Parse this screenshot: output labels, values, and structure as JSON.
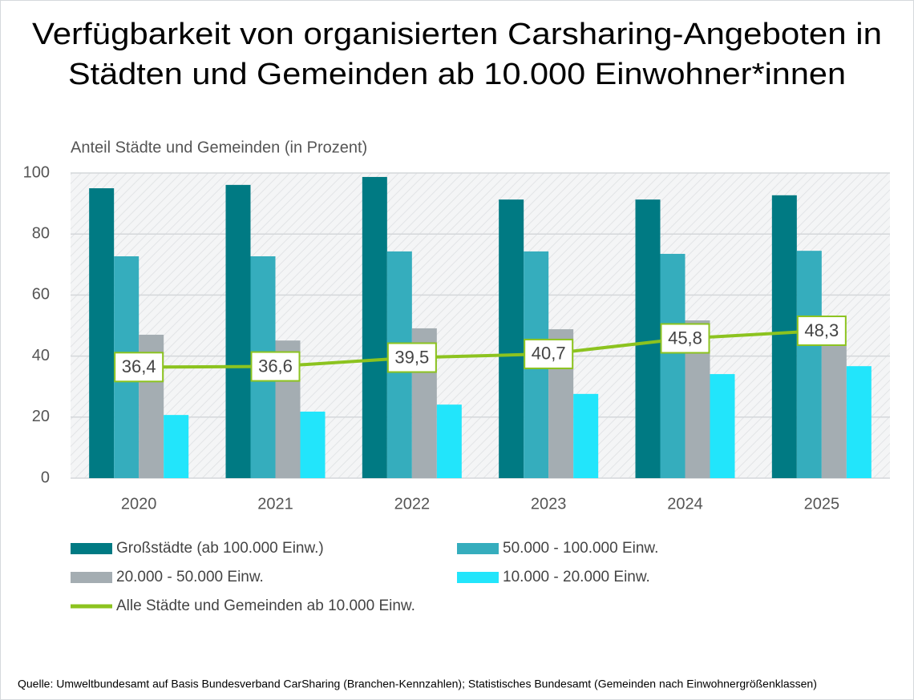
{
  "chart_data": {
    "type": "bar",
    "title": [
      "Verfügbarkeit von organisierten Carsharing-Angeboten in",
      "Städten und Gemeinden ab 10.000 Einwohner*innen"
    ],
    "y_label": "Anteil Städte und Gemeinden (in Prozent)",
    "categories": [
      "2020",
      "2021",
      "2022",
      "2023",
      "2024",
      "2025"
    ],
    "series": [
      {
        "name": "Großstädte (ab 100.000 Einw.)",
        "color": "#007a83",
        "values": [
          95.0,
          96.1,
          98.7,
          91.3,
          91.3,
          92.7
        ]
      },
      {
        "name": "50.000 - 100.000 Einw.",
        "color": "#35adbd",
        "values": [
          72.7,
          72.7,
          74.3,
          74.3,
          73.5,
          74.5
        ]
      },
      {
        "name": "20.000 - 50.000 Einw.",
        "color": "#a4adb2",
        "values": [
          47.0,
          45.1,
          49.1,
          48.8,
          51.7,
          43.3
        ]
      },
      {
        "name": "10.000 - 20.000 Einw.",
        "color": "#22e5fb",
        "values": [
          20.7,
          21.8,
          24.1,
          27.6,
          34.1,
          36.7
        ]
      }
    ],
    "line_series": {
      "name": "Alle Städte und Gemeinden ab 10.000 Einw.",
      "color": "#8cc31f",
      "values": [
        36.4,
        36.6,
        39.5,
        40.7,
        45.8,
        48.3
      ],
      "value_labels": [
        "36,4",
        "36,6",
        "39,5",
        "40,7",
        "45,8",
        "48,3"
      ]
    },
    "ylim": [
      0,
      100
    ],
    "yticks": [
      0,
      20,
      40,
      60,
      80,
      100
    ],
    "grid": true,
    "source": "Quelle: Umweltbundesamt auf Basis Bundesverband CarSharing (Branchen-Kennzahlen); Statistisches Bundesamt (Gemeinden nach Einwohnergrößenklassen)"
  }
}
